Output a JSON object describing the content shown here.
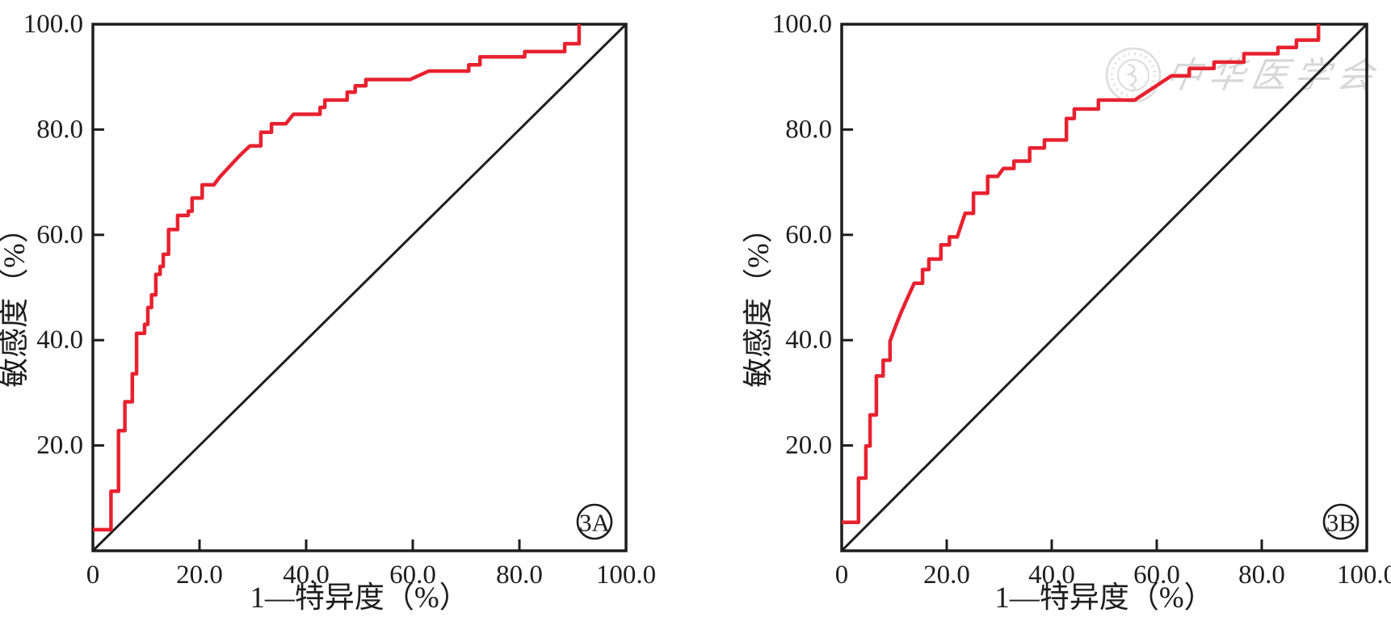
{
  "figure": {
    "background": "#ffffff",
    "curve_color": "#e8212f",
    "axis_color": "#1d1d1d",
    "watermark_color": "#d7d7d7",
    "watermark_text": "中华医学会"
  },
  "chart_data": [
    {
      "type": "line",
      "panel_label": "3A",
      "title": "",
      "xlabel": "1—特异度（%）",
      "ylabel": "敏感度（%）",
      "xlim": [
        0,
        100
      ],
      "ylim": [
        0,
        100
      ],
      "grid": false,
      "legend": "none",
      "x_tick_values": [
        0,
        20,
        40,
        60,
        80,
        100
      ],
      "x_tick_labels": [
        "0",
        "20.0",
        "40.0",
        "60.0",
        "80.0",
        "100.0"
      ],
      "y_tick_values": [
        20,
        40,
        60,
        80,
        100
      ],
      "y_tick_labels": [
        "20.0",
        "40.0",
        "60.0",
        "80.0",
        "100.0"
      ],
      "series": [
        {
          "name": "ROC curve",
          "color": "#e8212f",
          "points": [
            [
              0,
              4
            ],
            [
              3.4,
              4
            ],
            [
              3.4,
              11.3
            ],
            [
              4.8,
              11.3
            ],
            [
              4.8,
              22.8
            ],
            [
              6,
              22.8
            ],
            [
              6,
              28.3
            ],
            [
              7.4,
              28.3
            ],
            [
              7.4,
              33.6
            ],
            [
              8.2,
              33.6
            ],
            [
              8.2,
              41.3
            ],
            [
              9.7,
              41.3
            ],
            [
              9.7,
              43
            ],
            [
              10.3,
              43
            ],
            [
              10.3,
              46.2
            ],
            [
              11,
              46.2
            ],
            [
              11,
              48.6
            ],
            [
              11.8,
              48.6
            ],
            [
              11.8,
              52.5
            ],
            [
              12.6,
              52.5
            ],
            [
              12.6,
              54
            ],
            [
              13.2,
              54
            ],
            [
              13.2,
              56.3
            ],
            [
              14.2,
              56.3
            ],
            [
              14.2,
              61
            ],
            [
              15.9,
              61
            ],
            [
              15.9,
              63.7
            ],
            [
              17.9,
              63.7
            ],
            [
              17.9,
              64.5
            ],
            [
              18.6,
              64.5
            ],
            [
              18.6,
              67
            ],
            [
              20.5,
              67
            ],
            [
              20.5,
              69.5
            ],
            [
              22.7,
              69.5
            ],
            [
              23.8,
              71
            ],
            [
              25,
              72.3
            ],
            [
              26.2,
              73.6
            ],
            [
              27.4,
              74.9
            ],
            [
              28.5,
              76
            ],
            [
              29.5,
              76.9
            ],
            [
              31.5,
              76.9
            ],
            [
              31.5,
              79.5
            ],
            [
              33.5,
              79.5
            ],
            [
              33.5,
              81.1
            ],
            [
              36.2,
              81.1
            ],
            [
              37.6,
              82.9
            ],
            [
              42.6,
              82.9
            ],
            [
              42.6,
              84.2
            ],
            [
              43.5,
              84.2
            ],
            [
              43.5,
              85.6
            ],
            [
              47.7,
              85.6
            ],
            [
              47.7,
              87.1
            ],
            [
              49.2,
              87.1
            ],
            [
              49.2,
              88.3
            ],
            [
              51.2,
              88.3
            ],
            [
              51.2,
              89.5
            ],
            [
              59.5,
              89.5
            ],
            [
              63,
              91.1
            ],
            [
              70.5,
              91.1
            ],
            [
              70.5,
              92.3
            ],
            [
              72.6,
              92.3
            ],
            [
              72.6,
              93.8
            ],
            [
              81,
              93.8
            ],
            [
              81,
              94.8
            ],
            [
              88.5,
              94.8
            ],
            [
              88.5,
              96.3
            ],
            [
              91.2,
              96.3
            ],
            [
              91.2,
              100
            ]
          ]
        },
        {
          "name": "reference diagonal",
          "color": "#1d1d1d",
          "points": [
            [
              0,
              0
            ],
            [
              100,
              100
            ]
          ]
        }
      ]
    },
    {
      "type": "line",
      "panel_label": "3B",
      "title": "",
      "xlabel": "1—特异度（%）",
      "ylabel": "敏感度（%）",
      "xlim": [
        0,
        100
      ],
      "ylim": [
        0,
        100
      ],
      "grid": false,
      "legend": "none",
      "x_tick_values": [
        0,
        20,
        40,
        60,
        80,
        100
      ],
      "x_tick_labels": [
        "0",
        "20.0",
        "40.0",
        "60.0",
        "80.0",
        "100.0"
      ],
      "y_tick_values": [
        20,
        40,
        60,
        80,
        100
      ],
      "y_tick_labels": [
        "20.0",
        "40.0",
        "60.0",
        "80.0",
        "100.0"
      ],
      "series": [
        {
          "name": "ROC curve",
          "color": "#e8212f",
          "points": [
            [
              0,
              5.4
            ],
            [
              3.2,
              5.4
            ],
            [
              3.2,
              13.8
            ],
            [
              4.6,
              13.8
            ],
            [
              4.6,
              19.9
            ],
            [
              5.4,
              19.9
            ],
            [
              5.4,
              25.8
            ],
            [
              6.6,
              25.8
            ],
            [
              6.6,
              33.2
            ],
            [
              7.9,
              33.2
            ],
            [
              7.9,
              36.2
            ],
            [
              9.2,
              36.2
            ],
            [
              9.2,
              39.8
            ],
            [
              10.2,
              42.5
            ],
            [
              11.2,
              45
            ],
            [
              12.3,
              47.5
            ],
            [
              13.8,
              50.8
            ],
            [
              15.4,
              50.8
            ],
            [
              15.4,
              53.4
            ],
            [
              16.6,
              53.4
            ],
            [
              16.6,
              55.4
            ],
            [
              18.9,
              55.4
            ],
            [
              18.9,
              58.1
            ],
            [
              20.5,
              58.1
            ],
            [
              20.5,
              59.6
            ],
            [
              22,
              59.6
            ],
            [
              23.5,
              64.1
            ],
            [
              25.1,
              64.1
            ],
            [
              25.1,
              67.9
            ],
            [
              27.8,
              67.9
            ],
            [
              27.8,
              71.1
            ],
            [
              29.7,
              71.1
            ],
            [
              30.8,
              72.6
            ],
            [
              32.8,
              72.6
            ],
            [
              32.8,
              74
            ],
            [
              35.8,
              74
            ],
            [
              35.8,
              76.5
            ],
            [
              38.6,
              76.5
            ],
            [
              38.6,
              78
            ],
            [
              42.8,
              78
            ],
            [
              42.8,
              82.1
            ],
            [
              44.3,
              82.1
            ],
            [
              44.3,
              83.9
            ],
            [
              48.9,
              83.9
            ],
            [
              48.9,
              85.6
            ],
            [
              55.8,
              85.6
            ],
            [
              62.8,
              90.2
            ],
            [
              66.2,
              90.2
            ],
            [
              66.2,
              91.6
            ],
            [
              70.9,
              91.6
            ],
            [
              70.9,
              92.8
            ],
            [
              76.6,
              92.8
            ],
            [
              76.6,
              94.4
            ],
            [
              83.1,
              94.4
            ],
            [
              83.1,
              95.6
            ],
            [
              86.6,
              95.6
            ],
            [
              86.6,
              97
            ],
            [
              90.8,
              97
            ],
            [
              90.8,
              100
            ]
          ]
        },
        {
          "name": "reference diagonal",
          "color": "#1d1d1d",
          "points": [
            [
              0,
              0
            ],
            [
              100,
              100
            ]
          ]
        }
      ]
    }
  ]
}
